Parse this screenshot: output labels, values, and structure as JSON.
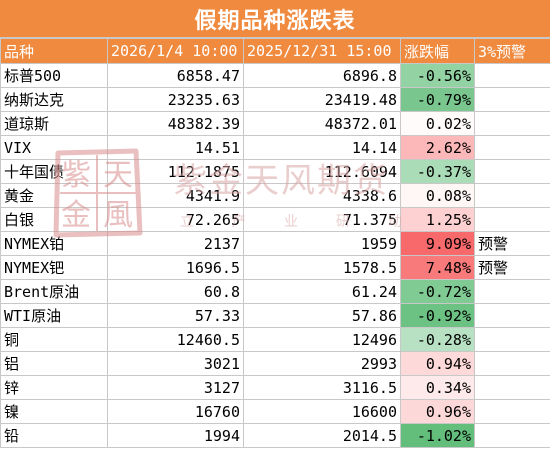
{
  "title": "假期品种涨跌表",
  "headers": [
    "品种",
    "2026/1/4 10:00",
    "2025/12/31 15:00",
    "涨跌幅",
    "3%预警"
  ],
  "rows": [
    {
      "name": "标普500",
      "a": "6858.47",
      "b": "6896.8",
      "pct": "-0.56%",
      "warn": "",
      "pct_value": -0.56
    },
    {
      "name": "纳斯达克",
      "a": "23235.63",
      "b": "23419.48",
      "pct": "-0.79%",
      "warn": "",
      "pct_value": -0.79
    },
    {
      "name": "道琼斯",
      "a": "48382.39",
      "b": "48372.01",
      "pct": "0.02%",
      "warn": "",
      "pct_value": 0.02
    },
    {
      "name": "VIX",
      "a": "14.51",
      "b": "14.14",
      "pct": "2.62%",
      "warn": "",
      "pct_value": 2.62
    },
    {
      "name": "十年国债",
      "a": "112.1875",
      "b": "112.6094",
      "pct": "-0.37%",
      "warn": "",
      "pct_value": -0.37
    },
    {
      "name": "黄金",
      "a": "4341.9",
      "b": "4338.6",
      "pct": "0.08%",
      "warn": "",
      "pct_value": 0.08
    },
    {
      "name": "白银",
      "a": "72.265",
      "b": "71.375",
      "pct": "1.25%",
      "warn": "",
      "pct_value": 1.25
    },
    {
      "name": "NYMEX铂",
      "a": "2137",
      "b": "1959",
      "pct": "9.09%",
      "warn": "预警",
      "pct_value": 9.09
    },
    {
      "name": "NYMEX钯",
      "a": "1696.5",
      "b": "1578.5",
      "pct": "7.48%",
      "warn": "预警",
      "pct_value": 7.48
    },
    {
      "name": "Brent原油",
      "a": "60.8",
      "b": "61.24",
      "pct": "-0.72%",
      "warn": "",
      "pct_value": -0.72
    },
    {
      "name": "WTI原油",
      "a": "57.33",
      "b": "57.86",
      "pct": "-0.92%",
      "warn": "",
      "pct_value": -0.92
    },
    {
      "name": "铜",
      "a": "12460.5",
      "b": "12496",
      "pct": "-0.28%",
      "warn": "",
      "pct_value": -0.28
    },
    {
      "name": "铝",
      "a": "3021",
      "b": "2993",
      "pct": "0.94%",
      "warn": "",
      "pct_value": 0.94
    },
    {
      "name": "锌",
      "a": "3127",
      "b": "3116.5",
      "pct": "0.34%",
      "warn": "",
      "pct_value": 0.34
    },
    {
      "name": "镍",
      "a": "16760",
      "b": "16600",
      "pct": "0.96%",
      "warn": "",
      "pct_value": 0.96
    },
    {
      "name": "铅",
      "a": "1994",
      "b": "2014.5",
      "pct": "-1.02%",
      "warn": "",
      "pct_value": -1.02
    }
  ],
  "watermark": {
    "seal_chars": [
      "紫",
      "天",
      "金",
      "風"
    ],
    "text": "紫金天风期货",
    "subtext": "立产业研动"
  },
  "colors": {
    "header": "#f08a3e",
    "positive_max": "#f8696b",
    "negative_max": "#63be7b",
    "neutral": "#ffffff"
  }
}
